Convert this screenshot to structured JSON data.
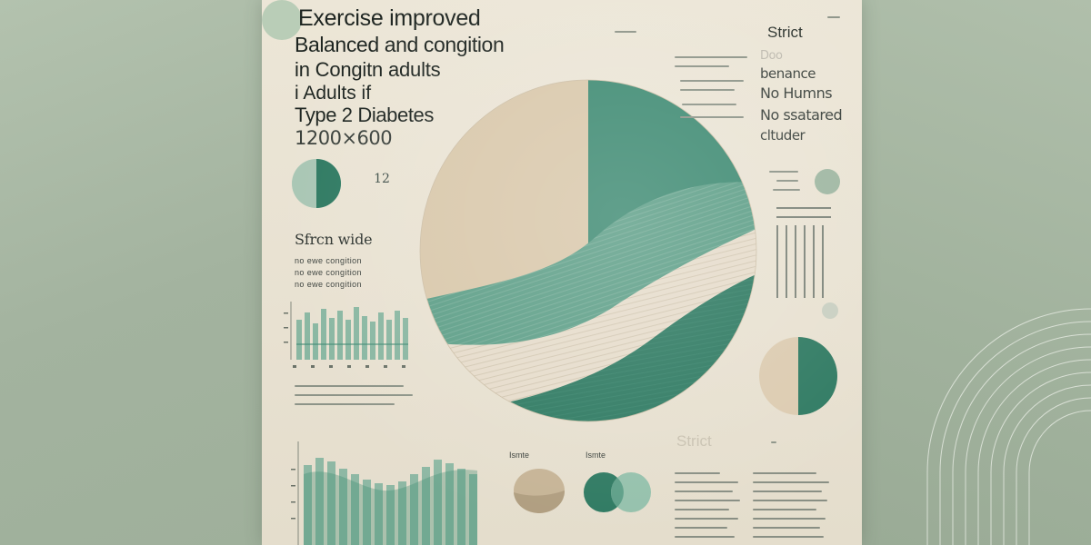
{
  "poster": {
    "title_lines": [
      "Exercise improved",
      "Balanced and congition",
      "in Congitn adults",
      "i Adults if",
      "Type 2 Diabetes",
      "1200×600"
    ],
    "badge_value": "12",
    "side_heading": "Sfrcn wide",
    "side_subtexts": [
      "no ewe congition",
      "no ewe congition",
      "no ewe congition"
    ],
    "right_heading": "Strict",
    "right_list": [
      "Doo",
      "benance",
      "No Humns",
      "No ssatared",
      "cltuder"
    ],
    "faded_heading": "Strict",
    "legend_labels": [
      "Ismte",
      "Ismte"
    ]
  },
  "colors": {
    "poster_bg": "#ece6d7",
    "background_sage": "#a7b7a3",
    "teal": "#3f8b73",
    "teal_dark": "#2f7a62",
    "light_teal": "#8cbba6",
    "tan": "#d9c8ab",
    "beige_stripe": "#e2d8c7"
  }
}
